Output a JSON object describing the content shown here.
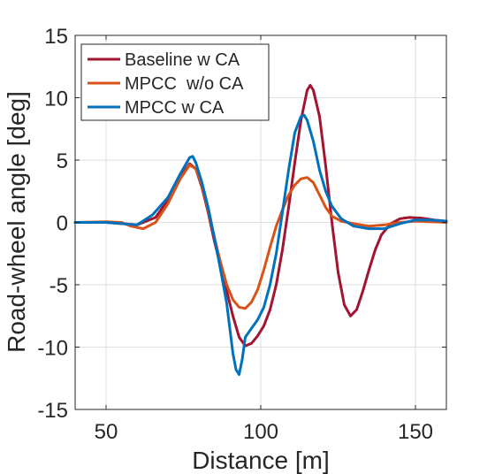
{
  "chart_data": {
    "type": "line",
    "title": "",
    "xlabel": "Distance [m]",
    "ylabel": "Road-wheel angle [deg]",
    "xlim": [
      40,
      160
    ],
    "ylim": [
      -15,
      15
    ],
    "xticks": [
      50,
      100,
      150
    ],
    "yticks": [
      15,
      10,
      5,
      0,
      -5,
      -10,
      -15
    ],
    "grid": true,
    "legend": "top-left",
    "series": [
      {
        "name": "Baseline w CA",
        "color": "#a2142f",
        "points": [
          [
            40,
            0
          ],
          [
            50,
            0
          ],
          [
            60,
            -0.2
          ],
          [
            66,
            0.4
          ],
          [
            70,
            1.8
          ],
          [
            74,
            3.6
          ],
          [
            77,
            4.7
          ],
          [
            79,
            4.3
          ],
          [
            81,
            2.8
          ],
          [
            83,
            0.8
          ],
          [
            85,
            -1.5
          ],
          [
            87,
            -3.5
          ],
          [
            89,
            -5.5
          ],
          [
            91,
            -7.5
          ],
          [
            93,
            -9.2
          ],
          [
            95,
            -9.9
          ],
          [
            97,
            -9.7
          ],
          [
            99,
            -9.1
          ],
          [
            101,
            -8.3
          ],
          [
            103,
            -7.0
          ],
          [
            105,
            -5.0
          ],
          [
            107,
            -2.2
          ],
          [
            109,
            1.2
          ],
          [
            111,
            4.8
          ],
          [
            113,
            8.2
          ],
          [
            115,
            10.6
          ],
          [
            116,
            11.0
          ],
          [
            117,
            10.6
          ],
          [
            119,
            8.5
          ],
          [
            121,
            4.5
          ],
          [
            123,
            0
          ],
          [
            125,
            -4.0
          ],
          [
            127,
            -6.6
          ],
          [
            129,
            -7.5
          ],
          [
            131,
            -7.0
          ],
          [
            133,
            -5.5
          ],
          [
            135,
            -3.8
          ],
          [
            137,
            -2.2
          ],
          [
            139,
            -1.0
          ],
          [
            142,
            -0.1
          ],
          [
            145,
            0.3
          ],
          [
            148,
            0.4
          ],
          [
            152,
            0.35
          ],
          [
            156,
            0.2
          ],
          [
            160,
            0.1
          ]
        ]
      },
      {
        "name": "MPCC  w/o CA",
        "color": "#d95319",
        "points": [
          [
            40,
            0
          ],
          [
            50,
            0.05
          ],
          [
            55,
            0
          ],
          [
            58,
            -0.3
          ],
          [
            62,
            -0.5
          ],
          [
            66,
            0
          ],
          [
            70,
            1.5
          ],
          [
            74,
            3.5
          ],
          [
            77,
            4.6
          ],
          [
            79,
            4.3
          ],
          [
            81,
            3.0
          ],
          [
            83,
            1.0
          ],
          [
            85,
            -1.2
          ],
          [
            87,
            -3.2
          ],
          [
            89,
            -5.0
          ],
          [
            91,
            -6.2
          ],
          [
            93,
            -6.8
          ],
          [
            95,
            -6.9
          ],
          [
            97,
            -6.4
          ],
          [
            99,
            -5.4
          ],
          [
            101,
            -3.8
          ],
          [
            103,
            -2.0
          ],
          [
            105,
            -0.3
          ],
          [
            107,
            1.0
          ],
          [
            109,
            2.2
          ],
          [
            111,
            3.0
          ],
          [
            113,
            3.5
          ],
          [
            115,
            3.6
          ],
          [
            117,
            3.2
          ],
          [
            119,
            2.2
          ],
          [
            121,
            1.2
          ],
          [
            123,
            0.5
          ],
          [
            126,
            0.1
          ],
          [
            130,
            -0.1
          ],
          [
            135,
            -0.3
          ],
          [
            140,
            -0.2
          ],
          [
            145,
            0
          ],
          [
            150,
            0.1
          ],
          [
            155,
            0.05
          ],
          [
            160,
            0
          ]
        ]
      },
      {
        "name": "MPCC w CA",
        "color": "#0072bd",
        "points": [
          [
            40,
            0
          ],
          [
            50,
            0
          ],
          [
            55,
            -0.1
          ],
          [
            60,
            -0.2
          ],
          [
            65,
            0.6
          ],
          [
            70,
            2.0
          ],
          [
            74,
            3.9
          ],
          [
            77,
            5.2
          ],
          [
            78,
            5.3
          ],
          [
            79,
            4.8
          ],
          [
            81,
            3.2
          ],
          [
            83,
            1.2
          ],
          [
            85,
            -1.2
          ],
          [
            87,
            -3.8
          ],
          [
            89,
            -6.5
          ],
          [
            90,
            -8.5
          ],
          [
            91,
            -10.5
          ],
          [
            92,
            -11.8
          ],
          [
            93,
            -12.2
          ],
          [
            94,
            -11.0
          ],
          [
            95,
            -9.2
          ],
          [
            97,
            -8.5
          ],
          [
            99,
            -7.8
          ],
          [
            101,
            -6.8
          ],
          [
            103,
            -5.0
          ],
          [
            105,
            -2.5
          ],
          [
            107,
            0.8
          ],
          [
            109,
            4.2
          ],
          [
            111,
            7.2
          ],
          [
            113,
            8.5
          ],
          [
            114,
            8.6
          ],
          [
            115,
            8.2
          ],
          [
            117,
            6.5
          ],
          [
            119,
            4.2
          ],
          [
            121,
            2.5
          ],
          [
            123,
            1.3
          ],
          [
            126,
            0.3
          ],
          [
            130,
            -0.3
          ],
          [
            135,
            -0.5
          ],
          [
            140,
            -0.5
          ],
          [
            145,
            -0.1
          ],
          [
            150,
            0.2
          ],
          [
            155,
            0.2
          ],
          [
            160,
            0.1
          ]
        ]
      }
    ]
  }
}
